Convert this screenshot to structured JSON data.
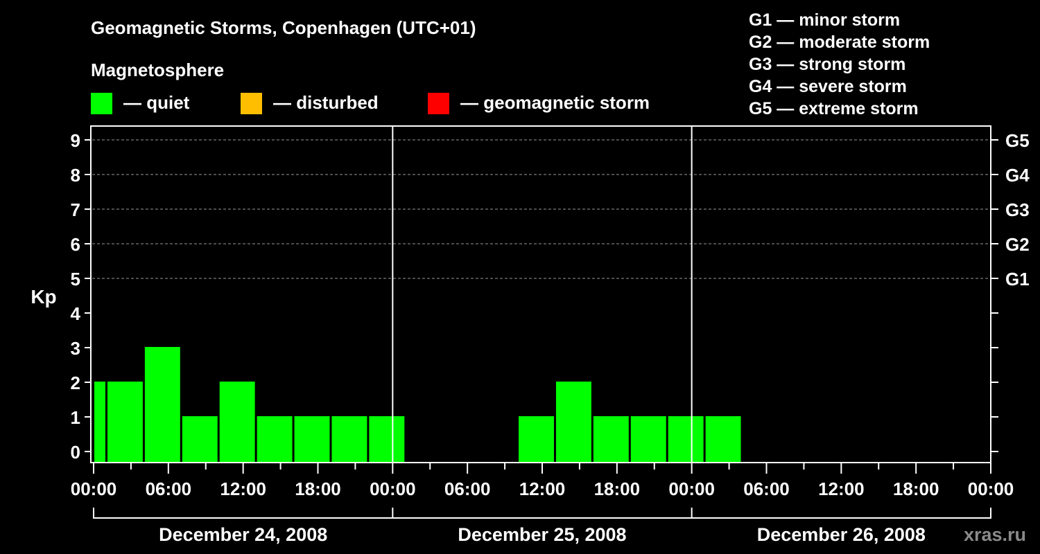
{
  "chart_data": {
    "type": "bar",
    "title": "Geomagnetic Storms, Copenhagen (UTC+01)",
    "ylabel": "Kp",
    "ylim": [
      0,
      9
    ],
    "y_ticks": [
      "0",
      "1",
      "2",
      "3",
      "4",
      "5",
      "6",
      "7",
      "8",
      "9"
    ],
    "storm_ticks": [
      {
        "kp": 5,
        "label": "G1"
      },
      {
        "kp": 6,
        "label": "G2"
      },
      {
        "kp": 7,
        "label": "G3"
      },
      {
        "kp": 8,
        "label": "G4"
      },
      {
        "kp": 9,
        "label": "G5"
      }
    ],
    "x_range_hours": [
      0,
      72
    ],
    "x_tick_labels": [
      "00:00",
      "06:00",
      "12:00",
      "18:00",
      "00:00",
      "06:00",
      "12:00",
      "18:00",
      "00:00",
      "06:00",
      "12:00",
      "18:00",
      "00:00"
    ],
    "days": [
      "December 24, 2008",
      "December 25, 2008",
      "December 26, 2008"
    ],
    "grid": "horizontal-dashed",
    "colors": {
      "quiet": "#00ff00",
      "disturbed": "#ffbf00",
      "storm": "#ff0000"
    },
    "bars": [
      {
        "start": "December 24, 2008 00:00",
        "end": "December 24, 2008 01:00",
        "kp": 2
      },
      {
        "start": "December 24, 2008 01:00",
        "end": "December 24, 2008 04:00",
        "kp": 2
      },
      {
        "start": "December 24, 2008 04:00",
        "end": "December 24, 2008 07:00",
        "kp": 3
      },
      {
        "start": "December 24, 2008 07:00",
        "end": "December 24, 2008 10:00",
        "kp": 1
      },
      {
        "start": "December 24, 2008 10:00",
        "end": "December 24, 2008 13:00",
        "kp": 2
      },
      {
        "start": "December 24, 2008 13:00",
        "end": "December 24, 2008 16:00",
        "kp": 1
      },
      {
        "start": "December 24, 2008 16:00",
        "end": "December 24, 2008 19:00",
        "kp": 1
      },
      {
        "start": "December 24, 2008 19:00",
        "end": "December 24, 2008 22:00",
        "kp": 1
      },
      {
        "start": "December 24, 2008 22:00",
        "end": "December 25, 2008 01:00",
        "kp": 1
      },
      {
        "start": "December 25, 2008 10:00",
        "end": "December 25, 2008 13:00",
        "kp": 1
      },
      {
        "start": "December 25, 2008 13:00",
        "end": "December 25, 2008 16:00",
        "kp": 2
      },
      {
        "start": "December 25, 2008 16:00",
        "end": "December 25, 2008 19:00",
        "kp": 1
      },
      {
        "start": "December 25, 2008 19:00",
        "end": "December 25, 2008 22:00",
        "kp": 1
      },
      {
        "start": "December 25, 2008 22:00",
        "end": "December 26, 2008 01:00",
        "kp": 1
      },
      {
        "start": "December 26, 2008 01:00",
        "end": "December 26, 2008 04:00",
        "kp": 1
      }
    ]
  },
  "legend": {
    "heading": "Magnetosphere",
    "items": [
      {
        "label": "— quiet",
        "color": "#00ff00"
      },
      {
        "label": "— disturbed",
        "color": "#ffbf00"
      },
      {
        "label": "— geomagnetic storm",
        "color": "#ff0000"
      }
    ]
  },
  "storm_scale": [
    "G1 — minor storm",
    "G2 — moderate storm",
    "G3 — strong storm",
    "G4 — severe storm",
    "G5 — extreme storm"
  ],
  "watermark": "xras.ru"
}
